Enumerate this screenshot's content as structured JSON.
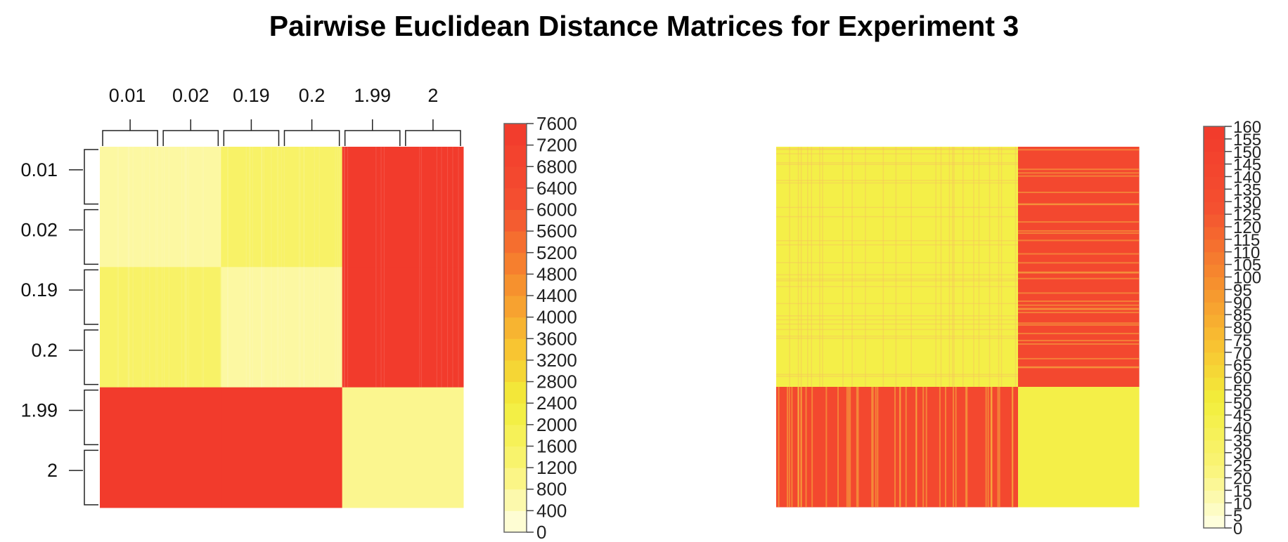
{
  "chart_data": [
    {
      "type": "heatmap",
      "title": "Pairwise Euclidean Distance Matrices for Experiment 3",
      "row_labels": [
        "0.01",
        "0.02",
        "0.19",
        "0.2",
        "1.99",
        "2"
      ],
      "col_labels": [
        "0.01",
        "0.02",
        "0.19",
        "0.2",
        "1.99",
        "2"
      ],
      "blocks": [
        {
          "rows": [
            "0.01",
            "0.02"
          ],
          "cols": [
            "0.01",
            "0.02"
          ],
          "value": 700
        },
        {
          "rows": [
            "0.01",
            "0.02"
          ],
          "cols": [
            "0.19",
            "0.2"
          ],
          "value": 1500
        },
        {
          "rows": [
            "0.01",
            "0.02"
          ],
          "cols": [
            "1.99",
            "2"
          ],
          "value": 7500
        },
        {
          "rows": [
            "0.19",
            "0.2"
          ],
          "cols": [
            "0.01",
            "0.02"
          ],
          "value": 1500
        },
        {
          "rows": [
            "0.19",
            "0.2"
          ],
          "cols": [
            "0.19",
            "0.2"
          ],
          "value": 700
        },
        {
          "rows": [
            "0.19",
            "0.2"
          ],
          "cols": [
            "1.99",
            "2"
          ],
          "value": 7500
        },
        {
          "rows": [
            "1.99",
            "2"
          ],
          "cols": [
            "0.01",
            "0.02"
          ],
          "value": 7500
        },
        {
          "rows": [
            "1.99",
            "2"
          ],
          "cols": [
            "0.19",
            "0.2"
          ],
          "value": 7500
        },
        {
          "rows": [
            "1.99",
            "2"
          ],
          "cols": [
            "1.99",
            "2"
          ],
          "value": 900
        }
      ],
      "colorbar": {
        "min": 0,
        "max": 7600,
        "step": 400,
        "tick_labels": [
          "0",
          "400",
          "800",
          "1200",
          "1600",
          "2000",
          "2400",
          "2800",
          "3200",
          "3600",
          "4000",
          "4400",
          "4800",
          "5200",
          "5600",
          "6000",
          "6400",
          "6800",
          "7200",
          "7600"
        ]
      },
      "dendrograms": true
    },
    {
      "type": "heatmap",
      "row_labels": [],
      "col_labels": [],
      "blocks": [
        {
          "rows": "first 2/3",
          "cols": "first 2/3",
          "value": 45
        },
        {
          "rows": "first 2/3",
          "cols": "last 1/3",
          "value": 140
        },
        {
          "rows": "last 1/3",
          "cols": "first 2/3",
          "value": 140
        },
        {
          "rows": "last 1/3",
          "cols": "last 1/3",
          "value": 45
        }
      ],
      "colorbar": {
        "min": 0,
        "max": 160,
        "step": 5,
        "tick_labels": [
          "0",
          "5",
          "10",
          "15",
          "20",
          "25",
          "30",
          "35",
          "40",
          "45",
          "50",
          "55",
          "60",
          "65",
          "70",
          "75",
          "80",
          "85",
          "90",
          "95",
          "100",
          "105",
          "110",
          "115",
          "120",
          "125",
          "130",
          "135",
          "140",
          "145",
          "150",
          "155",
          "160"
        ]
      },
      "dendrograms": false
    }
  ]
}
